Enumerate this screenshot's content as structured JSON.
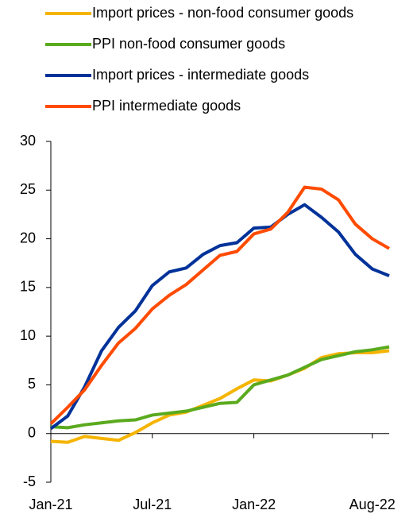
{
  "chart_data": {
    "type": "line",
    "categories": [
      "Jan-21",
      null,
      null,
      null,
      null,
      null,
      "Jul-21",
      null,
      null,
      null,
      null,
      null,
      "Jan-22",
      null,
      null,
      null,
      null,
      null,
      null,
      "Aug-22",
      null
    ],
    "series": [
      {
        "name": "Import prices - non-food consumer goods",
        "color": "#f5b400",
        "values": [
          -0.8,
          -0.9,
          -0.3,
          -0.5,
          -0.7,
          0.1,
          1.1,
          1.9,
          2.2,
          2.9,
          3.6,
          4.6,
          5.5,
          5.4,
          6,
          6.7,
          7.8,
          8.2,
          8.3,
          8.3,
          8.5
        ]
      },
      {
        "name": "PPI non-food consumer goods",
        "color": "#5aaa1e",
        "values": [
          0.7,
          0.6,
          0.9,
          1.1,
          1.3,
          1.4,
          1.9,
          2.1,
          2.3,
          2.7,
          3.1,
          3.2,
          5,
          5.5,
          6,
          6.8,
          7.6,
          8,
          8.4,
          8.6,
          8.9
        ]
      },
      {
        "name": "Import prices - intermediate goods",
        "color": "#003299",
        "values": [
          0.5,
          1.8,
          4.8,
          8.5,
          10.9,
          12.6,
          15.2,
          16.6,
          17,
          18.4,
          19.3,
          19.6,
          21.1,
          21.2,
          22.5,
          23.5,
          22.2,
          20.7,
          18.4,
          16.9,
          16.2
        ]
      },
      {
        "name": "PPI intermediate goods",
        "color": "#ff4b00",
        "values": [
          1,
          2.7,
          4.5,
          7,
          9.3,
          10.8,
          12.8,
          14.2,
          15.3,
          16.8,
          18.3,
          18.7,
          20.5,
          21,
          22.7,
          25.3,
          25.1,
          24,
          21.5,
          20,
          19
        ]
      }
    ],
    "ylim": [
      -5,
      30
    ],
    "yticks": [
      -5,
      0,
      5,
      10,
      15,
      20,
      25,
      30
    ]
  }
}
